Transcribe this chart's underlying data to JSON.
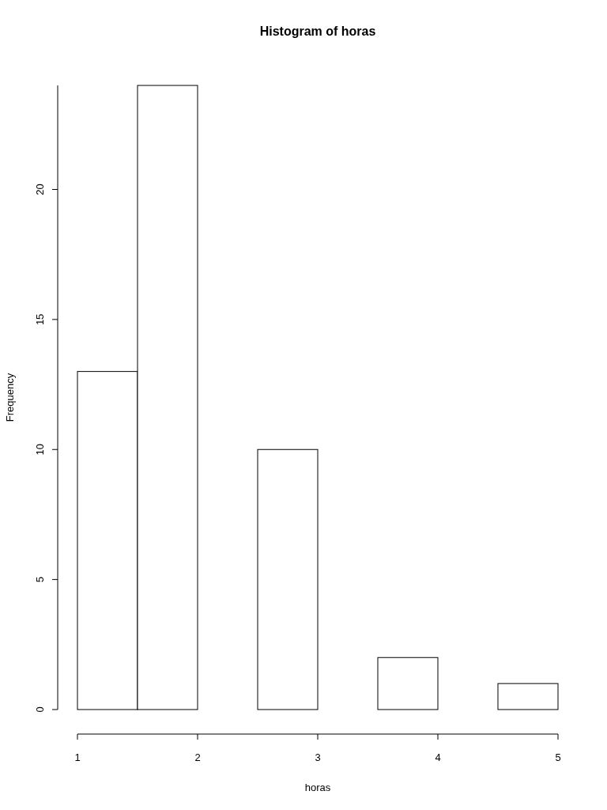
{
  "chart_data": {
    "type": "histogram",
    "title": "Histogram of horas",
    "xlabel": "horas",
    "ylabel": "Frequency",
    "bins": [
      1,
      1.5,
      2,
      2.5,
      3,
      3.5,
      4,
      4.5,
      5
    ],
    "values": [
      13,
      24,
      0,
      10,
      0,
      2,
      0,
      1
    ],
    "color": "#ffffff",
    "xlim": [
      1,
      5
    ],
    "xticks": [
      1,
      2,
      3,
      4,
      5
    ],
    "ylim": [
      0,
      24
    ],
    "yticks": [
      0,
      5,
      10,
      15,
      20
    ],
    "grid": false
  }
}
